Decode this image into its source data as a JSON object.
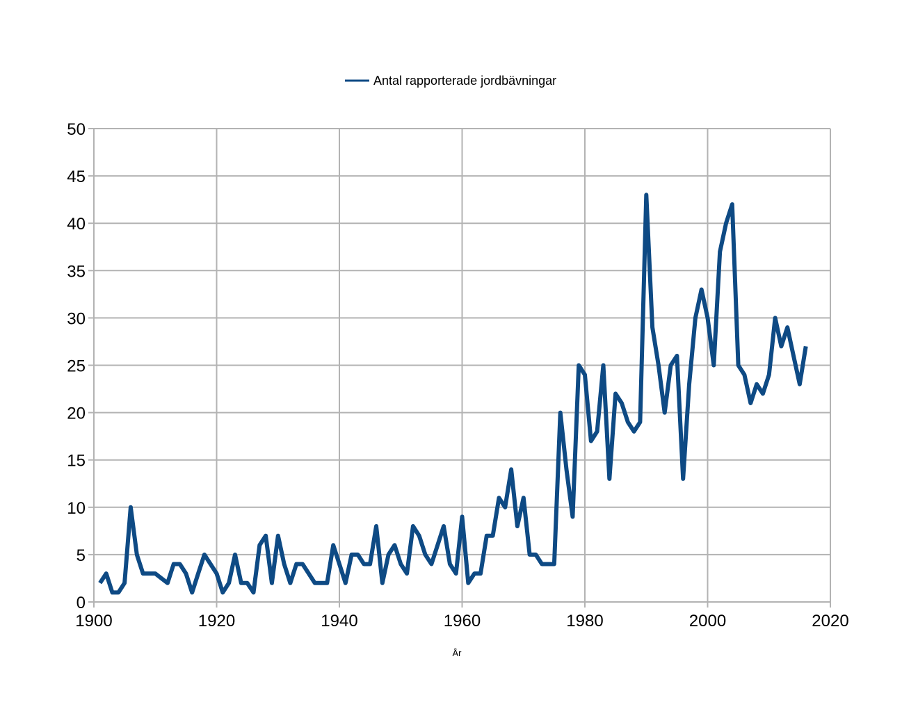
{
  "chart_data": {
    "type": "line",
    "title": "",
    "xlabel": "År",
    "ylabel": "",
    "xlim": [
      1900,
      2020
    ],
    "ylim": [
      0,
      50
    ],
    "x_ticks": [
      1900,
      1920,
      1940,
      1960,
      1980,
      2000,
      2020
    ],
    "y_ticks": [
      0,
      5,
      10,
      15,
      20,
      25,
      30,
      35,
      40,
      45,
      50
    ],
    "grid": true,
    "legend_position": "top-center",
    "series": [
      {
        "name": "Antal rapporterade jordbävningar",
        "color": "#0e4a84",
        "x": [
          1901,
          1902,
          1903,
          1904,
          1905,
          1906,
          1907,
          1908,
          1909,
          1910,
          1911,
          1912,
          1913,
          1914,
          1915,
          1916,
          1917,
          1918,
          1919,
          1920,
          1921,
          1922,
          1923,
          1924,
          1925,
          1926,
          1927,
          1928,
          1929,
          1930,
          1931,
          1932,
          1933,
          1934,
          1935,
          1936,
          1937,
          1938,
          1939,
          1940,
          1941,
          1942,
          1943,
          1944,
          1945,
          1946,
          1947,
          1948,
          1949,
          1950,
          1951,
          1952,
          1953,
          1954,
          1955,
          1956,
          1957,
          1958,
          1959,
          1960,
          1961,
          1962,
          1963,
          1964,
          1965,
          1966,
          1967,
          1968,
          1969,
          1970,
          1971,
          1972,
          1973,
          1974,
          1975,
          1976,
          1977,
          1978,
          1979,
          1980,
          1981,
          1982,
          1983,
          1984,
          1985,
          1986,
          1987,
          1988,
          1989,
          1990,
          1991,
          1992,
          1993,
          1994,
          1995,
          1996,
          1997,
          1998,
          1999,
          2000,
          2001,
          2002,
          2003,
          2004,
          2005,
          2006,
          2007,
          2008,
          2009,
          2010,
          2011,
          2012,
          2013,
          2014,
          2015,
          2016
        ],
        "values": [
          2,
          3,
          1,
          1,
          2,
          10,
          5,
          3,
          3,
          3,
          2.5,
          2,
          4,
          4,
          3,
          1,
          3,
          5,
          4,
          3,
          1,
          2,
          5,
          2,
          2,
          1,
          6,
          7,
          2,
          7,
          4,
          2,
          4,
          4,
          3,
          2,
          2,
          2,
          6,
          4,
          2,
          5,
          5,
          4,
          4,
          8,
          2,
          5,
          6,
          4,
          3,
          8,
          7,
          5,
          4,
          6,
          8,
          4,
          3,
          9,
          2,
          3,
          3,
          7,
          7,
          11,
          10,
          14,
          8,
          11,
          5,
          5,
          4,
          4,
          4,
          20,
          14,
          9,
          25,
          24,
          17,
          18,
          25,
          13,
          22,
          21,
          19,
          18,
          19,
          43,
          29,
          25,
          20,
          25,
          26,
          13,
          23,
          30,
          33,
          30,
          25,
          37,
          40,
          42,
          25,
          24,
          21,
          23,
          22,
          24,
          30,
          27,
          29,
          26,
          23,
          27
        ]
      }
    ]
  }
}
